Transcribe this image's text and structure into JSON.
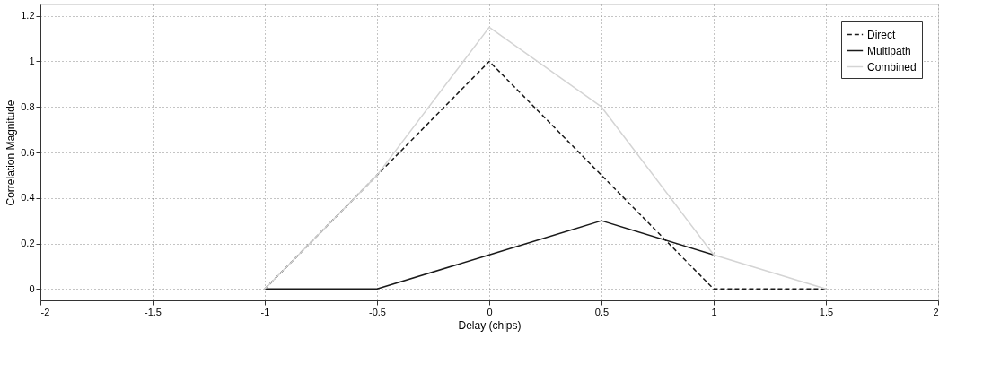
{
  "chart_data": {
    "type": "line",
    "xlabel": "Delay (chips)",
    "ylabel": "Correlation Magnitude",
    "xlim": [
      -2,
      2
    ],
    "xticks": [
      -2,
      -1.5,
      -1,
      -0.5,
      0,
      0.5,
      1,
      1.5,
      2
    ],
    "ylim": [
      -0.05,
      1.25
    ],
    "yticks": [
      0,
      0.2,
      0.4,
      0.6,
      0.8,
      1,
      1.2
    ],
    "grid": true,
    "legend": "top right",
    "marker": "none",
    "series": [
      {
        "name": "Direct",
        "color": "#1a1a1a",
        "line_style": "dashed",
        "x": [
          -1,
          -0.5,
          0,
          0.5,
          1,
          1.5
        ],
        "values": [
          0,
          0.5,
          1,
          0.5,
          0,
          0
        ]
      },
      {
        "name": "Multipath",
        "color": "#1a1a1a",
        "line_style": "solid",
        "x": [
          -1,
          -0.5,
          0,
          0.5,
          1
        ],
        "values": [
          0,
          0,
          0.15,
          0.3,
          0.15
        ]
      },
      {
        "name": "Combined",
        "color": "#d4d4d4",
        "line_style": "solid",
        "x": [
          -1,
          -0.5,
          0,
          0.5,
          1,
          1.5
        ],
        "values": [
          0,
          0.5,
          1.15,
          0.8,
          0.15,
          0
        ]
      }
    ]
  }
}
